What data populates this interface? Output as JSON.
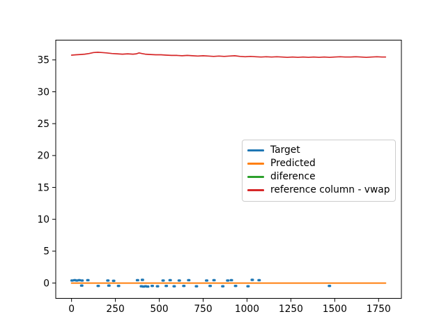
{
  "figure": {
    "background": "#ffffff",
    "axes_edge_color": "#000000",
    "tick_label_color": "#000000"
  },
  "chart_data": {
    "type": "line",
    "title": "",
    "xlabel": "",
    "ylabel": "",
    "xlim": [
      -90,
      1880
    ],
    "ylim": [
      -2.4,
      38.1
    ],
    "x_ticks": [
      0,
      250,
      500,
      750,
      1000,
      1250,
      1500,
      1750
    ],
    "y_ticks": [
      0,
      5,
      10,
      15,
      20,
      25,
      30,
      35
    ],
    "grid": false,
    "legend": {
      "position": "center-right",
      "border_color": "#cccccc",
      "background": "rgba(255,255,255,0.8)"
    },
    "series": [
      {
        "name": "Target",
        "color": "#1f77b4",
        "style": "spikes",
        "note": "short blue marks scattered just above/below y=0",
        "points": [
          [
            3,
            0.4
          ],
          [
            18,
            0.45
          ],
          [
            30,
            0.4
          ],
          [
            44,
            0.45
          ],
          [
            58,
            -0.4
          ],
          [
            60,
            0.4
          ],
          [
            93,
            0.45
          ],
          [
            152,
            -0.45
          ],
          [
            207,
            0.4
          ],
          [
            213,
            -0.4
          ],
          [
            240,
            0.35
          ],
          [
            268,
            -0.45
          ],
          [
            376,
            0.45
          ],
          [
            398,
            -0.5
          ],
          [
            404,
            0.5
          ],
          [
            410,
            -0.55
          ],
          [
            422,
            -0.5
          ],
          [
            434,
            -0.55
          ],
          [
            460,
            -0.45
          ],
          [
            490,
            -0.5
          ],
          [
            522,
            0.4
          ],
          [
            540,
            -0.45
          ],
          [
            562,
            0.45
          ],
          [
            585,
            -0.5
          ],
          [
            614,
            0.4
          ],
          [
            640,
            -0.45
          ],
          [
            668,
            0.45
          ],
          [
            712,
            -0.5
          ],
          [
            770,
            0.4
          ],
          [
            790,
            -0.45
          ],
          [
            812,
            0.45
          ],
          [
            862,
            -0.5
          ],
          [
            890,
            0.4
          ],
          [
            911,
            0.45
          ],
          [
            935,
            -0.45
          ],
          [
            1006,
            -0.5
          ],
          [
            1030,
            0.5
          ],
          [
            1069,
            0.45
          ],
          [
            1470,
            -0.45
          ]
        ]
      },
      {
        "name": "Predicted",
        "color": "#ff7f0e",
        "style": "line",
        "note": "flat line at y=0 across full data range",
        "points": [
          [
            0,
            0
          ],
          [
            1790,
            0
          ]
        ]
      },
      {
        "name": "diference",
        "color": "#2ca02c",
        "style": "line",
        "note": "not visible in plot (hidden beneath other series)",
        "points": []
      },
      {
        "name": "reference column - vwap",
        "color": "#d62728",
        "style": "line",
        "note": "wavy line around y=35.4-36.2",
        "points": [
          [
            0,
            35.75
          ],
          [
            25,
            35.8
          ],
          [
            50,
            35.85
          ],
          [
            75,
            35.9
          ],
          [
            100,
            36.0
          ],
          [
            125,
            36.15
          ],
          [
            150,
            36.2
          ],
          [
            175,
            36.15
          ],
          [
            200,
            36.1
          ],
          [
            230,
            36.0
          ],
          [
            260,
            35.95
          ],
          [
            290,
            35.9
          ],
          [
            320,
            35.95
          ],
          [
            350,
            35.9
          ],
          [
            370,
            35.95
          ],
          [
            385,
            36.1
          ],
          [
            400,
            36.0
          ],
          [
            420,
            35.9
          ],
          [
            450,
            35.85
          ],
          [
            480,
            35.8
          ],
          [
            510,
            35.8
          ],
          [
            540,
            35.75
          ],
          [
            570,
            35.7
          ],
          [
            600,
            35.7
          ],
          [
            630,
            35.65
          ],
          [
            660,
            35.7
          ],
          [
            690,
            35.65
          ],
          [
            720,
            35.6
          ],
          [
            750,
            35.65
          ],
          [
            780,
            35.6
          ],
          [
            810,
            35.55
          ],
          [
            840,
            35.6
          ],
          [
            870,
            35.55
          ],
          [
            900,
            35.6
          ],
          [
            930,
            35.65
          ],
          [
            960,
            35.55
          ],
          [
            990,
            35.5
          ],
          [
            1020,
            35.55
          ],
          [
            1050,
            35.5
          ],
          [
            1080,
            35.45
          ],
          [
            1110,
            35.5
          ],
          [
            1140,
            35.45
          ],
          [
            1170,
            35.5
          ],
          [
            1200,
            35.45
          ],
          [
            1230,
            35.4
          ],
          [
            1260,
            35.45
          ],
          [
            1290,
            35.4
          ],
          [
            1320,
            35.45
          ],
          [
            1350,
            35.4
          ],
          [
            1380,
            35.45
          ],
          [
            1410,
            35.4
          ],
          [
            1440,
            35.45
          ],
          [
            1470,
            35.4
          ],
          [
            1500,
            35.45
          ],
          [
            1530,
            35.5
          ],
          [
            1560,
            35.45
          ],
          [
            1590,
            35.45
          ],
          [
            1620,
            35.5
          ],
          [
            1650,
            35.45
          ],
          [
            1680,
            35.4
          ],
          [
            1710,
            35.45
          ],
          [
            1740,
            35.5
          ],
          [
            1770,
            35.45
          ],
          [
            1790,
            35.45
          ]
        ]
      }
    ]
  }
}
